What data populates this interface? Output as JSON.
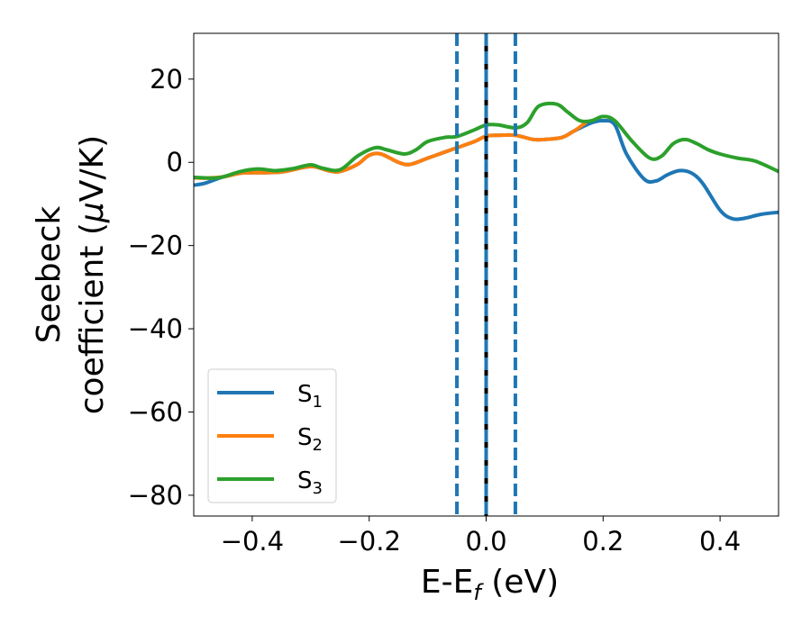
{
  "chart_data": {
    "type": "line",
    "xlabel": "E-E",
    "xlabel_sub": "f",
    "xlabel_unit": " (eV)",
    "ylabel_line1": "Seebeck",
    "ylabel_line2": "coefficient  (",
    "ylabel_mu": "μ",
    "ylabel_unit": "V/K)",
    "xlim": [
      -0.5,
      0.5
    ],
    "ylim": [
      -85,
      31
    ],
    "xticks": [
      -0.4,
      -0.2,
      0.0,
      0.2,
      0.4
    ],
    "xtick_labels": [
      "−0.4",
      "−0.2",
      "0.0",
      "0.2",
      "0.4"
    ],
    "yticks": [
      -80,
      -60,
      -40,
      -20,
      0,
      20
    ],
    "ytick_labels": [
      "−80",
      "−60",
      "−40",
      "−20",
      "0",
      "20"
    ],
    "grid": false,
    "legend_position": "lower-left",
    "vlines": [
      {
        "x": -0.05,
        "style": "dashed",
        "color": "#1f77b4"
      },
      {
        "x": 0.05,
        "style": "dashed",
        "color": "#1f77b4"
      },
      {
        "x": 0.0,
        "style": "solid",
        "color": "#000000"
      },
      {
        "x": 0.0,
        "style": "dashed",
        "color": "#1f77b4"
      }
    ],
    "series": [
      {
        "name": "S",
        "sub": "1",
        "color": "#1f77b4",
        "x": [
          -0.5,
          -0.48,
          -0.45,
          -0.42,
          -0.4,
          -0.35,
          -0.3,
          -0.27,
          -0.25,
          -0.22,
          -0.2,
          -0.18,
          -0.15,
          -0.13,
          -0.1,
          -0.07,
          -0.05,
          -0.02,
          0.0,
          0.02,
          0.05,
          0.08,
          0.1,
          0.13,
          0.15,
          0.18,
          0.2,
          0.22,
          0.24,
          0.27,
          0.29,
          0.31,
          0.33,
          0.35,
          0.37,
          0.4,
          0.42,
          0.44,
          0.47,
          0.5
        ],
        "y": [
          -5.5,
          -5,
          -3.5,
          -2.6,
          -2.5,
          -2.3,
          -1,
          -2,
          -2.2,
          -0.5,
          1.7,
          2,
          0,
          -0.5,
          1,
          2.5,
          3.5,
          5,
          6.3,
          6.5,
          6.5,
          5.5,
          5.5,
          6,
          7.5,
          9.5,
          10,
          9,
          2,
          -4,
          -4.5,
          -3,
          -2,
          -2.5,
          -5,
          -11.5,
          -13.5,
          -13.5,
          -12.5,
          -12
        ]
      },
      {
        "name": "S",
        "sub": "2",
        "color": "#ff7f0e",
        "x": [
          -0.5,
          -0.48,
          -0.45,
          -0.42,
          -0.4,
          -0.35,
          -0.3,
          -0.27,
          -0.25,
          -0.22,
          -0.2,
          -0.18,
          -0.15,
          -0.13,
          -0.1,
          -0.07,
          -0.05,
          -0.02,
          0.0,
          0.02,
          0.05,
          0.08,
          0.1,
          0.13,
          0.15,
          0.17
        ],
        "y": [
          -3.7,
          -3.8,
          -3.5,
          -2.6,
          -2.5,
          -2.3,
          -1,
          -2,
          -2.2,
          -0.5,
          1.7,
          2,
          0,
          -0.5,
          1,
          2.5,
          3.5,
          5,
          6.3,
          6.5,
          6.5,
          5.5,
          5.5,
          6,
          7.5,
          9.5
        ]
      },
      {
        "name": "S",
        "sub": "3",
        "color": "#2ca02c",
        "x": [
          -0.5,
          -0.47,
          -0.45,
          -0.42,
          -0.39,
          -0.36,
          -0.33,
          -0.3,
          -0.28,
          -0.25,
          -0.22,
          -0.19,
          -0.17,
          -0.14,
          -0.12,
          -0.1,
          -0.07,
          -0.05,
          -0.02,
          0.0,
          0.02,
          0.05,
          0.07,
          0.09,
          0.12,
          0.14,
          0.16,
          0.18,
          0.2,
          0.22,
          0.25,
          0.28,
          0.3,
          0.32,
          0.34,
          0.36,
          0.38,
          0.4,
          0.43,
          0.46,
          0.5
        ],
        "y": [
          -3.6,
          -3.8,
          -3.5,
          -2.2,
          -1.6,
          -2,
          -1.5,
          -0.6,
          -1.4,
          -1.8,
          1.5,
          3.5,
          3,
          2,
          3,
          5,
          6,
          6.2,
          7.8,
          9,
          9,
          8.3,
          9.5,
          13.5,
          14,
          12,
          10,
          10,
          11,
          10,
          5,
          1,
          1.5,
          4.5,
          5.5,
          4.5,
          3,
          2,
          1,
          0.3,
          -2.2
        ]
      }
    ]
  }
}
